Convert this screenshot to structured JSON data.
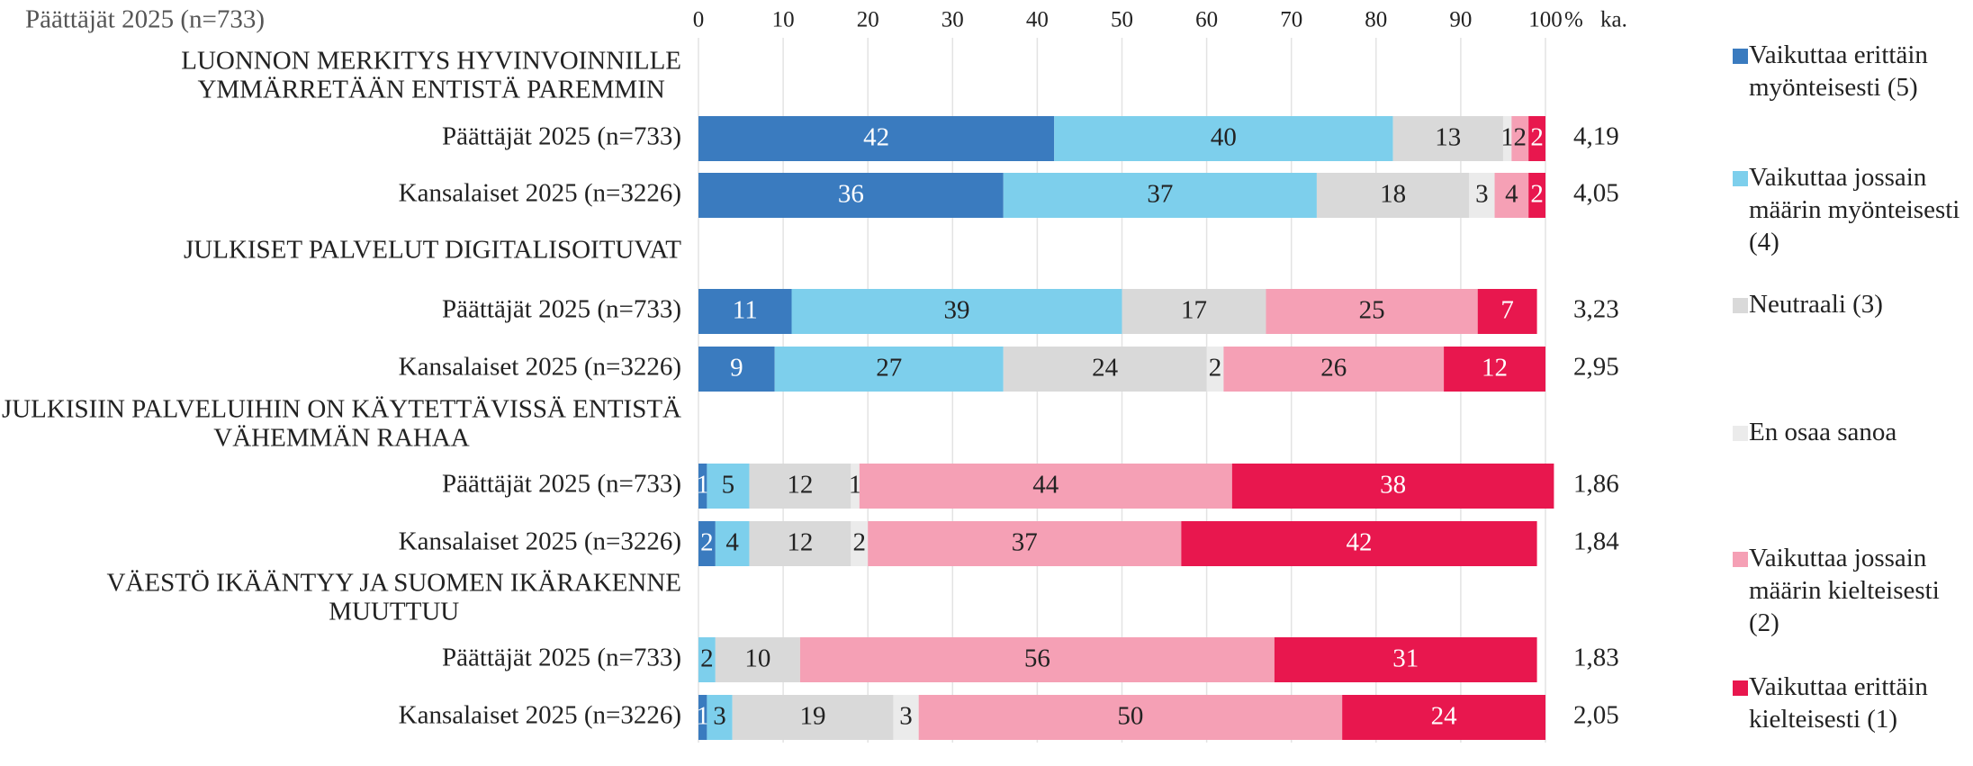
{
  "chart_data": {
    "type": "bar",
    "orientation": "horizontal",
    "stacked": true,
    "title": "Päättäjät 2025 (n=733)",
    "unit_label": "%",
    "mean_header": "ka.",
    "categories": [
      "Päättäjät 2025 (n=733)",
      "Kansalaiset 2025 (n=3226)",
      "Päättäjät 2025 (n=733)",
      "Kansalaiset 2025 (n=3226)",
      "Päättäjät 2025 (n=733)",
      "Kansalaiset 2025 (n=3226)",
      "Päättäjät 2025 (n=733)",
      "Kansalaiset 2025 (n=3226)"
    ],
    "groups": [
      {
        "title_lines": [
          "LUONNON MERKITYS HYVINVOINNILLE",
          "YMMÄRRETÄÄN ENTISTÄ PAREMMIN"
        ]
      },
      {
        "title_lines": [
          "JULKISET PALVELUT DIGITALISOITUVAT"
        ]
      },
      {
        "title_lines": [
          "JULKISIIN PALVELUIHIN ON KÄYTETTÄVISSÄ ENTISTÄ",
          "VÄHEMMÄN RAHAA"
        ]
      },
      {
        "title_lines": [
          "VÄESTÖ IKÄÄNTYY JA SUOMEN IKÄRAKENNE",
          "MUUTTUU"
        ]
      }
    ],
    "means": [
      "4,19",
      "4,05",
      "3,23",
      "2,95",
      "1,86",
      "1,84",
      "1,83",
      "2,05"
    ],
    "series": [
      {
        "name": "Vaikuttaa erittäin myönteisesti (5)",
        "color": "#3a7bbf",
        "values": [
          42,
          36,
          11,
          9,
          1,
          2,
          null,
          1
        ]
      },
      {
        "name": "Vaikuttaa jossain määrin myönteisesti (4)",
        "color": "#7dcfec",
        "values": [
          40,
          37,
          39,
          27,
          5,
          4,
          2,
          3
        ]
      },
      {
        "name": "Neutraali (3)",
        "color": "#d9d9d9",
        "values": [
          13,
          18,
          17,
          24,
          12,
          12,
          10,
          19
        ]
      },
      {
        "name": "En osaa sanoa",
        "color": "#ebebeb",
        "values": [
          1,
          3,
          null,
          2,
          1,
          2,
          null,
          3
        ]
      },
      {
        "name": "Vaikuttaa jossain määrin kielteisesti (2)",
        "color": "#f5a0b5",
        "values": [
          2,
          4,
          25,
          26,
          44,
          37,
          56,
          50
        ]
      },
      {
        "name": "Vaikuttaa erittäin kielteisesti (1)",
        "color": "#e8174e",
        "values": [
          2,
          2,
          7,
          12,
          38,
          42,
          31,
          24
        ]
      }
    ],
    "xlim": [
      0,
      100
    ],
    "xticks": [
      0,
      10,
      20,
      30,
      40,
      50,
      60,
      70,
      80,
      90,
      100
    ],
    "grid": true,
    "legend": "right"
  }
}
